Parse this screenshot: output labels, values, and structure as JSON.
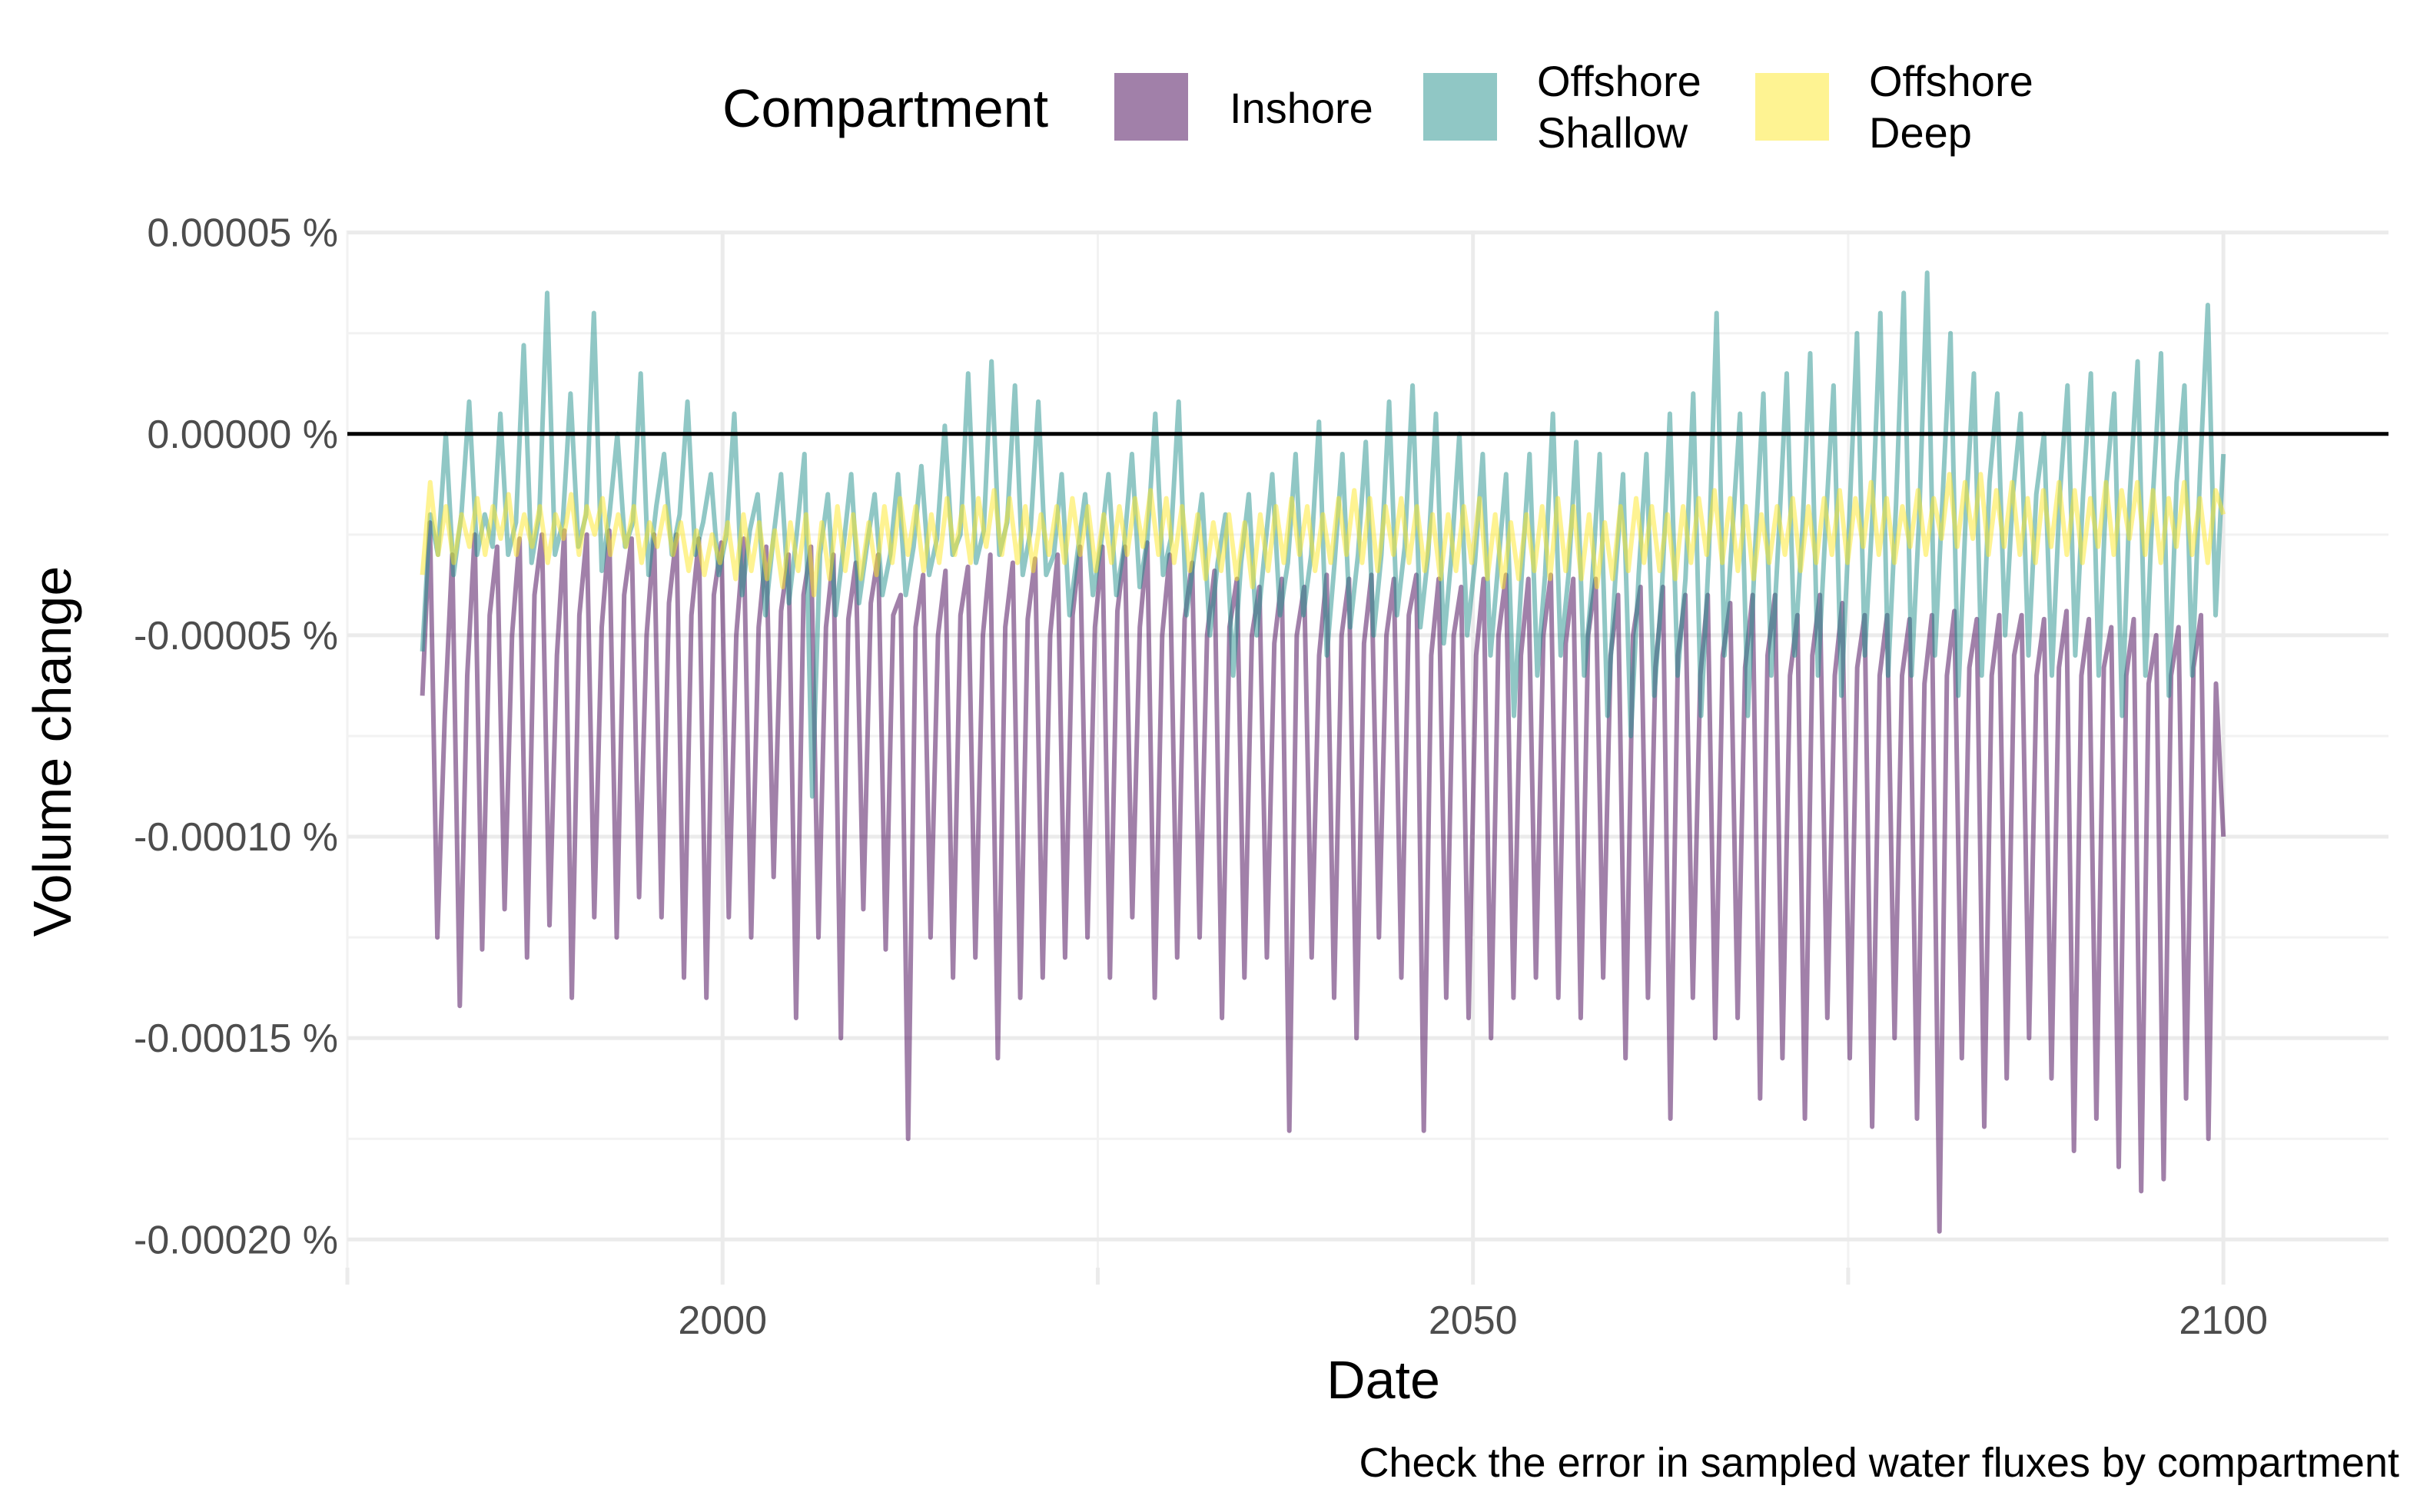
{
  "chart_data": {
    "type": "line",
    "title": "",
    "xlabel": "Date",
    "ylabel": "Volume change",
    "caption": "Check the error in sampled water fluxes by compartment",
    "legend": {
      "title": "Compartment",
      "position": "top",
      "entries": [
        {
          "label_lines": [
            "Inshore"
          ],
          "color": "#440154"
        },
        {
          "label_lines": [
            "Offshore",
            "Shallow"
          ],
          "color": "#21908C"
        },
        {
          "label_lines": [
            "Offshore",
            "Deep"
          ],
          "color": "#FDE725"
        }
      ]
    },
    "xlim": [
      1975,
      2111
    ],
    "x_ticks": [
      {
        "value": 2000,
        "label": "2000"
      },
      {
        "value": 2050,
        "label": "2050"
      },
      {
        "value": 2100,
        "label": "2100"
      }
    ],
    "ylim": [
      -0.000207,
      5.05e-05
    ],
    "y_ticks": [
      {
        "value": 5e-05,
        "label": "0.00005 %"
      },
      {
        "value": 0.0,
        "label": "0.00000 %"
      },
      {
        "value": -5e-05,
        "label": "-0.00005 %"
      },
      {
        "value": -0.0001,
        "label": "-0.00010 %"
      },
      {
        "value": -0.00015,
        "label": "-0.00015 %"
      },
      {
        "value": -0.0002,
        "label": "-0.00020 %"
      }
    ],
    "reference_line": {
      "y": 0.0,
      "color": "#000000"
    },
    "grid": true,
    "series_opacity": 0.5,
    "series": [
      {
        "name": "Inshore",
        "color": "#440154",
        "x_start": 1980,
        "x_end": 2100,
        "values": [
          -6.5e-05,
          -2.2e-05,
          -0.000125,
          -7e-05,
          -3e-05,
          -0.000142,
          -6e-05,
          -2.5e-05,
          -0.000128,
          -4.5e-05,
          -2.8e-05,
          -0.000118,
          -5e-05,
          -2.6e-05,
          -0.00013,
          -4e-05,
          -2.5e-05,
          -0.000122,
          -5.5e-05,
          -2.4e-05,
          -0.00014,
          -4.5e-05,
          -2.5e-05,
          -0.00012,
          -4.8e-05,
          -2.4e-05,
          -0.000125,
          -4e-05,
          -2.6e-05,
          -0.000115,
          -5e-05,
          -2.5e-05,
          -0.00012,
          -4.2e-05,
          -2.5e-05,
          -0.000135,
          -4.5e-05,
          -2.6e-05,
          -0.00014,
          -4e-05,
          -2.7e-05,
          -0.00012,
          -5e-05,
          -2.6e-05,
          -0.000125,
          -4.8e-05,
          -2.8e-05,
          -0.00011,
          -4.4e-05,
          -3e-05,
          -0.000145,
          -4e-05,
          -2.8e-05,
          -0.000125,
          -4.8e-05,
          -3e-05,
          -0.00015,
          -4.6e-05,
          -3.2e-05,
          -0.000118,
          -4.2e-05,
          -3e-05,
          -0.000128,
          -4.5e-05,
          -4e-05,
          -0.000175,
          -4.8e-05,
          -3.5e-05,
          -0.000125,
          -5e-05,
          -3.4e-05,
          -0.000135,
          -4.5e-05,
          -3.3e-05,
          -0.00013,
          -5e-05,
          -3e-05,
          -0.000155,
          -4.8e-05,
          -3.2e-05,
          -0.00014,
          -4.6e-05,
          -3.1e-05,
          -0.000135,
          -5e-05,
          -3e-05,
          -0.00013,
          -4.5e-05,
          -2.8e-05,
          -0.000125,
          -4.8e-05,
          -2.8e-05,
          -0.000135,
          -4.4e-05,
          -2.8e-05,
          -0.00012,
          -4.8e-05,
          -2.7e-05,
          -0.00014,
          -5e-05,
          -3e-05,
          -0.00013,
          -4.6e-05,
          -3.2e-05,
          -0.000125,
          -5e-05,
          -3.4e-05,
          -0.000145,
          -4.8e-05,
          -3.6e-05,
          -0.000135,
          -5e-05,
          -3.8e-05,
          -0.00013,
          -5.2e-05,
          -3.6e-05,
          -0.000173,
          -5e-05,
          -3.8e-05,
          -0.00013,
          -5.5e-05,
          -3.5e-05,
          -0.00014,
          -5e-05,
          -3.6e-05,
          -0.00015,
          -5.2e-05,
          -3.5e-05,
          -0.000125,
          -5e-05,
          -3.6e-05,
          -0.000135,
          -4.5e-05,
          -3.5e-05,
          -0.000173,
          -5.5e-05,
          -3.6e-05,
          -0.00014,
          -5e-05,
          -3.8e-05,
          -0.000145,
          -5.5e-05,
          -3.6e-05,
          -0.00015,
          -5e-05,
          -3.5e-05,
          -0.00014,
          -5.5e-05,
          -3.6e-05,
          -0.000135,
          -5e-05,
          -3.5e-05,
          -0.00014,
          -5.2e-05,
          -3.6e-05,
          -0.000145,
          -5e-05,
          -3.6e-05,
          -0.000135,
          -5.5e-05,
          -4e-05,
          -0.000155,
          -5e-05,
          -3.8e-05,
          -0.00014,
          -5.8e-05,
          -3.8e-05,
          -0.00017,
          -5.5e-05,
          -4e-05,
          -0.00014,
          -6e-05,
          -4e-05,
          -0.00015,
          -5.5e-05,
          -4.2e-05,
          -0.000145,
          -5.8e-05,
          -4e-05,
          -0.000165,
          -5.5e-05,
          -4e-05,
          -0.000155,
          -6e-05,
          -4.5e-05,
          -0.00017,
          -5.5e-05,
          -4e-05,
          -0.000145,
          -6e-05,
          -4.2e-05,
          -0.000155,
          -5.8e-05,
          -4.5e-05,
          -0.000172,
          -6e-05,
          -4.5e-05,
          -0.00015,
          -6e-05,
          -4.6e-05,
          -0.00017,
          -6.2e-05,
          -4.5e-05,
          -0.000198,
          -6e-05,
          -4.4e-05,
          -0.000155,
          -5.8e-05,
          -4.6e-05,
          -0.000172,
          -6e-05,
          -4.5e-05,
          -0.00016,
          -5.5e-05,
          -4.5e-05,
          -0.00015,
          -6e-05,
          -4.6e-05,
          -0.00016,
          -5.8e-05,
          -4.4e-05,
          -0.000178,
          -6e-05,
          -4.6e-05,
          -0.00017,
          -5.8e-05,
          -4.8e-05,
          -0.000182,
          -6e-05,
          -4.6e-05,
          -0.000188,
          -6.2e-05,
          -5e-05,
          -0.000185,
          -6e-05,
          -4.8e-05,
          -0.000165,
          -5.8e-05,
          -4.5e-05,
          -0.000175,
          -6.2e-05,
          -0.0001
        ]
      },
      {
        "name": "Offshore Shallow",
        "color": "#21908C",
        "x_start": 1980,
        "x_end": 2100,
        "values": [
          -5.4e-05,
          -2e-05,
          -3e-05,
          0.0,
          -3.5e-05,
          -2e-05,
          8e-06,
          -3e-05,
          -2e-05,
          -2.8e-05,
          5e-06,
          -3e-05,
          -2.2e-05,
          2.2e-05,
          -3.2e-05,
          -2e-05,
          3.5e-05,
          -3e-05,
          -2.2e-05,
          1e-05,
          -2.8e-05,
          -2e-05,
          3e-05,
          -3.4e-05,
          -2e-05,
          0.0,
          -2.8e-05,
          -2.2e-05,
          1.5e-05,
          -3.5e-05,
          -1.8e-05,
          -5e-06,
          -3e-05,
          -2e-05,
          8e-06,
          -3e-05,
          -2.2e-05,
          -1e-05,
          -3.5e-05,
          -2.5e-05,
          5e-06,
          -4e-05,
          -2.4e-05,
          -1.5e-05,
          -4.5e-05,
          -2.6e-05,
          -1e-05,
          -4.2e-05,
          -2.5e-05,
          -5e-06,
          -9e-05,
          -3e-05,
          -1.5e-05,
          -4.5e-05,
          -2.8e-05,
          -1e-05,
          -4.2e-05,
          -2.8e-05,
          -1.5e-05,
          -4e-05,
          -3e-05,
          -1e-05,
          -4e-05,
          -2.8e-05,
          -8e-06,
          -3.5e-05,
          -2.6e-05,
          2e-06,
          -3e-05,
          -2.5e-05,
          1.5e-05,
          -3.2e-05,
          -2.4e-05,
          1.8e-05,
          -3e-05,
          -2.2e-05,
          1.2e-05,
          -3.5e-05,
          -2.4e-05,
          8e-06,
          -3.5e-05,
          -3e-05,
          -1e-05,
          -4.5e-05,
          -3e-05,
          -1.5e-05,
          -4e-05,
          -2.8e-05,
          -1e-05,
          -4e-05,
          -2.8e-05,
          -5e-06,
          -3.8e-05,
          -2.6e-05,
          5e-06,
          -3.5e-05,
          -2.6e-05,
          8e-06,
          -4.5e-05,
          -3e-05,
          -1.5e-05,
          -5e-05,
          -3.2e-05,
          -2e-05,
          -6e-05,
          -3.2e-05,
          -1.5e-05,
          -5e-05,
          -3e-05,
          -1e-05,
          -4.5e-05,
          -3.2e-05,
          -5e-06,
          -4.5e-05,
          -3e-05,
          3e-06,
          -5.5e-05,
          -3.2e-05,
          -5e-06,
          -4.8e-05,
          -3e-05,
          -2e-06,
          -5e-05,
          -3e-05,
          8e-06,
          -4.5e-05,
          -2.8e-05,
          1.2e-05,
          -4.8e-05,
          -3e-05,
          5e-06,
          -5.2e-05,
          -3e-05,
          0.0,
          -5e-05,
          -3.2e-05,
          -5e-06,
          -5.5e-05,
          -3.2e-05,
          -1e-05,
          -7e-05,
          -3.5e-05,
          -5e-06,
          -6e-05,
          -3.5e-05,
          5e-06,
          -5.5e-05,
          -3.5e-05,
          -2e-06,
          -6e-05,
          -3.8e-05,
          -5e-06,
          -7e-05,
          -3.6e-05,
          -1e-05,
          -7.5e-05,
          -3.5e-05,
          -5e-06,
          -6.5e-05,
          -3.8e-05,
          5e-06,
          -6e-05,
          -3.6e-05,
          1e-05,
          -7e-05,
          -3e-05,
          3e-05,
          -5.5e-05,
          -2.5e-05,
          5e-06,
          -7e-05,
          -2.6e-05,
          1e-05,
          -6e-05,
          -2.4e-05,
          1.5e-05,
          -5.5e-05,
          -2.4e-05,
          2e-05,
          -6e-05,
          -2.2e-05,
          1.2e-05,
          -6.5e-05,
          -2.2e-05,
          2.5e-05,
          -5.5e-05,
          -2e-05,
          3e-05,
          -6e-05,
          -1.8e-05,
          3.5e-05,
          -6e-05,
          -2e-05,
          4e-05,
          -5.5e-05,
          -1.5e-05,
          2.5e-05,
          -6.5e-05,
          -1.8e-05,
          1.5e-05,
          -6e-05,
          -1.2e-05,
          1e-05,
          -5e-05,
          -1.5e-05,
          5e-06,
          -5.5e-05,
          -1.5e-05,
          0.0,
          -6e-05,
          -1.6e-05,
          1.2e-05,
          -5.5e-05,
          -1.5e-05,
          1.5e-05,
          -6e-05,
          -1.2e-05,
          1e-05,
          -7e-05,
          -1.5e-05,
          1.8e-05,
          -6e-05,
          -1.4e-05,
          2e-05,
          -6.5e-05,
          -1.2e-05,
          1.2e-05,
          -6e-05,
          -1e-05,
          3.2e-05,
          -4.5e-05,
          -5e-06
        ]
      },
      {
        "name": "Offshore Deep",
        "color": "#FDE725",
        "x_start": 1980,
        "x_end": 2100,
        "values": [
          -3.5e-05,
          -1.2e-05,
          -3e-05,
          -1.8e-05,
          -3.2e-05,
          -2e-05,
          -2.8e-05,
          -1.6e-05,
          -3e-05,
          -1.8e-05,
          -2.6e-05,
          -1.5e-05,
          -3e-05,
          -2e-05,
          -2.8e-05,
          -1.8e-05,
          -3.2e-05,
          -2e-05,
          -2.6e-05,
          -1.5e-05,
          -3e-05,
          -1.8e-05,
          -2.5e-05,
          -1.6e-05,
          -3e-05,
          -2e-05,
          -2.8e-05,
          -1.8e-05,
          -3.2e-05,
          -2.2e-05,
          -2.8e-05,
          -1.8e-05,
          -3e-05,
          -2.2e-05,
          -3.4e-05,
          -2.4e-05,
          -3.5e-05,
          -2.5e-05,
          -3.2e-05,
          -2.2e-05,
          -3.6e-05,
          -2e-05,
          -3.4e-05,
          -2.2e-05,
          -3.6e-05,
          -2.4e-05,
          -3.8e-05,
          -2.2e-05,
          -3.4e-05,
          -2e-05,
          -4e-05,
          -2.2e-05,
          -3.6e-05,
          -1.8e-05,
          -3.4e-05,
          -2e-05,
          -3.6e-05,
          -2.2e-05,
          -3.5e-05,
          -1.8e-05,
          -3.2e-05,
          -1.6e-05,
          -3e-05,
          -1.8e-05,
          -3.4e-05,
          -2e-05,
          -3.2e-05,
          -1.6e-05,
          -3e-05,
          -1.8e-05,
          -3.2e-05,
          -1.6e-05,
          -2.8e-05,
          -1.4e-05,
          -3e-05,
          -1.6e-05,
          -3.2e-05,
          -1.8e-05,
          -3.4e-05,
          -2e-05,
          -3e-05,
          -1.8e-05,
          -3.2e-05,
          -1.6e-05,
          -3e-05,
          -1.8e-05,
          -3.4e-05,
          -2e-05,
          -3.2e-05,
          -1.8e-05,
          -3e-05,
          -1.6e-05,
          -2.8e-05,
          -1.4e-05,
          -3e-05,
          -1.6e-05,
          -3.2e-05,
          -1.8e-05,
          -3.4e-05,
          -2e-05,
          -3.6e-05,
          -2.2e-05,
          -3.4e-05,
          -2e-05,
          -3.6e-05,
          -2.2e-05,
          -3.8e-05,
          -2e-05,
          -3.4e-05,
          -1.8e-05,
          -3.2e-05,
          -1.6e-05,
          -3e-05,
          -1.8e-05,
          -3.4e-05,
          -2e-05,
          -3.2e-05,
          -1.6e-05,
          -3e-05,
          -1.4e-05,
          -3.2e-05,
          -1.6e-05,
          -3.4e-05,
          -1.8e-05,
          -3e-05,
          -1.6e-05,
          -3.2e-05,
          -1.8e-05,
          -3.4e-05,
          -2e-05,
          -3.6e-05,
          -2e-05,
          -3.4e-05,
          -1.8e-05,
          -3.2e-05,
          -1.6e-05,
          -3.6e-05,
          -2e-05,
          -3.8e-05,
          -2.2e-05,
          -3.6e-05,
          -2e-05,
          -3.4e-05,
          -1.8e-05,
          -3.6e-05,
          -1.6e-05,
          -3.4e-05,
          -1.8e-05,
          -3.6e-05,
          -2e-05,
          -3.8e-05,
          -2.2e-05,
          -3.6e-05,
          -1.8e-05,
          -3.4e-05,
          -1.6e-05,
          -3.2e-05,
          -1.8e-05,
          -3.4e-05,
          -2e-05,
          -3.6e-05,
          -1.8e-05,
          -3.2e-05,
          -1.6e-05,
          -3e-05,
          -1.4e-05,
          -3.2e-05,
          -1.6e-05,
          -3.4e-05,
          -1.8e-05,
          -3.6e-05,
          -2e-05,
          -3.2e-05,
          -1.8e-05,
          -3e-05,
          -1.6e-05,
          -3.4e-05,
          -1.8e-05,
          -3.2e-05,
          -1.6e-05,
          -3e-05,
          -1.4e-05,
          -3.2e-05,
          -1.6e-05,
          -2.8e-05,
          -1.2e-05,
          -3e-05,
          -1.6e-05,
          -3.2e-05,
          -1.8e-05,
          -2.8e-05,
          -1.4e-05,
          -3e-05,
          -1.6e-05,
          -2.6e-05,
          -1e-05,
          -2.8e-05,
          -1.2e-05,
          -2.6e-05,
          -1e-05,
          -3e-05,
          -1.4e-05,
          -2.8e-05,
          -1.2e-05,
          -3e-05,
          -1.6e-05,
          -3.2e-05,
          -1.4e-05,
          -2.8e-05,
          -1.2e-05,
          -3e-05,
          -1.4e-05,
          -3.2e-05,
          -1.6e-05,
          -2.8e-05,
          -1.2e-05,
          -3e-05,
          -1.4e-05,
          -2.6e-05,
          -1.2e-05,
          -3e-05,
          -1.4e-05,
          -3.2e-05,
          -1.6e-05,
          -2.8e-05,
          -1.2e-05,
          -3e-05,
          -1.6e-05,
          -3.2e-05,
          -1.4e-05,
          -2e-05
        ]
      }
    ]
  }
}
